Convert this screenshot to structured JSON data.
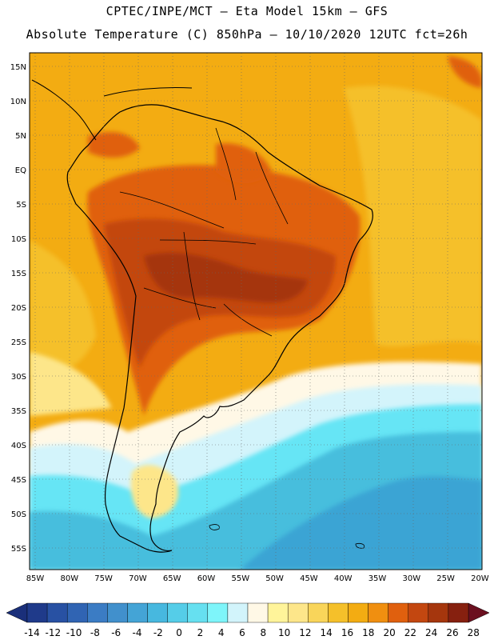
{
  "header": {
    "title_line1": "CPTEC/INPE/MCT –  Eta Model 15km – GFS",
    "title_line2": "Absolute Temperature (C) 850hPa – 10/10/2020 12UTC fct=26h"
  },
  "map": {
    "lat_labels": [
      "15N",
      "10N",
      "5N",
      "EQ",
      "5S",
      "10S",
      "15S",
      "20S",
      "25S",
      "30S",
      "35S",
      "40S",
      "45S",
      "50S",
      "55S"
    ],
    "lon_labels": [
      "85W",
      "80W",
      "75W",
      "70W",
      "65W",
      "60W",
      "55W",
      "50W",
      "45W",
      "40W",
      "35W",
      "30W",
      "25W",
      "20W"
    ],
    "colors": {
      "warm_bg": "#f3ac12",
      "hot": "#e0600e",
      "very_hot": "#c34710",
      "hottest": "#a5360d",
      "yellow": "#f5c02a",
      "pale_yellow": "#fde68a",
      "cream": "#fff8e6",
      "pale_blue": "#d3f4fb",
      "cyan": "#66e5f5",
      "teal": "#46bedd",
      "blue": "#3aa4d4",
      "land_border": "#000000"
    }
  },
  "colorbar": {
    "labels": [
      "-14",
      "-12",
      "-10",
      "-8",
      "-6",
      "-4",
      "-2",
      "0",
      "2",
      "4",
      "6",
      "8",
      "10",
      "12",
      "14",
      "16",
      "18",
      "20",
      "22",
      "24",
      "26",
      "28"
    ],
    "colors": [
      "#1f3a8a",
      "#2851a3",
      "#3064b3",
      "#3b7cc4",
      "#4190cc",
      "#44a4d6",
      "#47b8df",
      "#55cde8",
      "#66e0f0",
      "#7ef5fa",
      "#d2f4fb",
      "#fff8e6",
      "#fff49a",
      "#fde68a",
      "#f9d55a",
      "#f5c02a",
      "#f3ac12",
      "#f08f10",
      "#e0600e",
      "#c34710",
      "#a5360d",
      "#86200f"
    ]
  }
}
